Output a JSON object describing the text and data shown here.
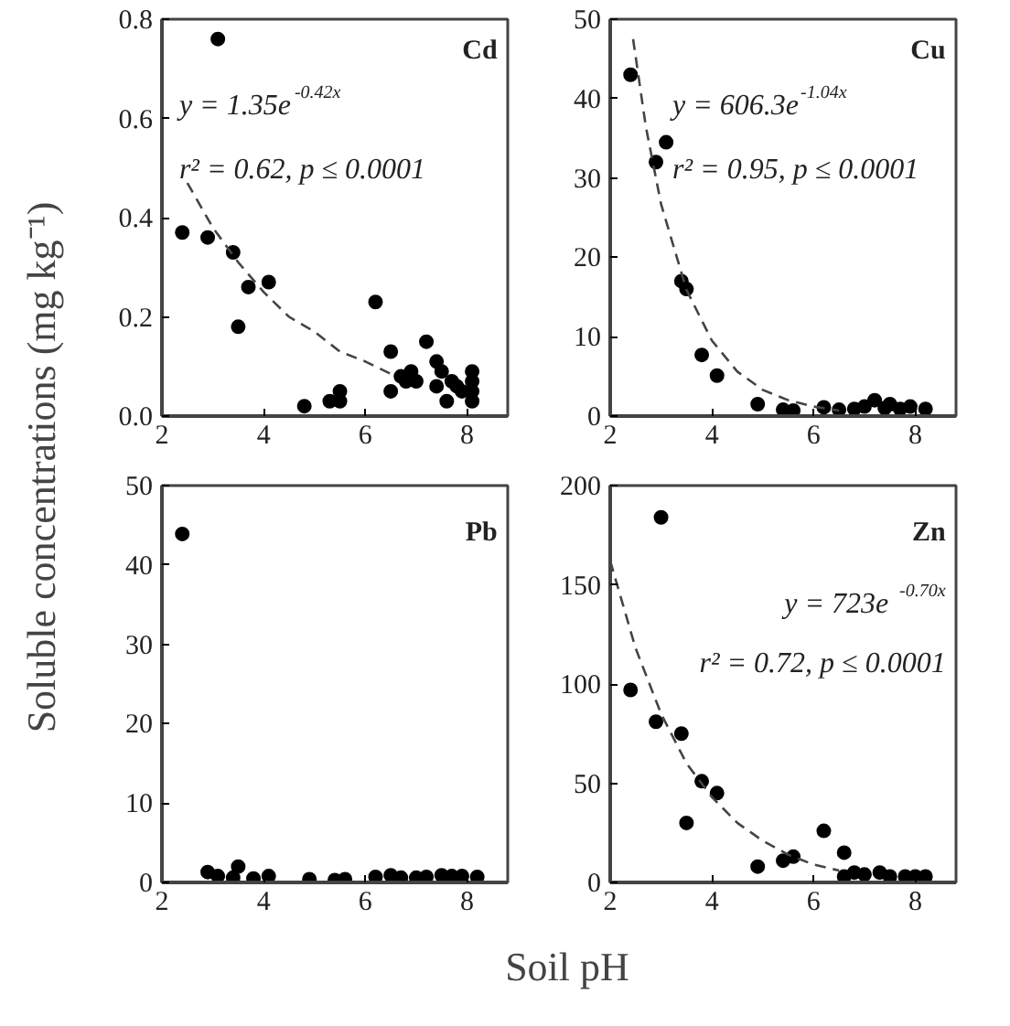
{
  "chart_data": [
    {
      "type": "scatter",
      "ylabel": "Soluble concentrations (mg kg⁻¹)",
      "xlim": [
        2,
        8.8
      ],
      "xticks": [
        2,
        4,
        6,
        8
      ],
      "ylim": [
        0,
        0.8
      ],
      "yticks": [
        {
          "value": 0,
          "label": "0.0"
        },
        0.2,
        0.4,
        0.6,
        0.8
      ],
      "grid": false,
      "annotations": [
        "Cd",
        "y = 1.35e$^{-0.42x}$",
        "r² = 0.62, p ≤ 0.0001"
      ],
      "series": [
        {
          "marker": "circle",
          "color": "#000000",
          "x": [
            2.4,
            2.9,
            3.1,
            3.4,
            3.5,
            3.7,
            4.1,
            4.8,
            5.3,
            5.5,
            5.5,
            6.2,
            6.5,
            6.5,
            6.7,
            6.8,
            6.9,
            7.0,
            7.2,
            7.4,
            7.4,
            7.5,
            7.6,
            7.7,
            7.8,
            7.9,
            8.1,
            8.1,
            8.1,
            8.1
          ],
          "values": [
            0.37,
            0.36,
            0.76,
            0.33,
            0.18,
            0.26,
            0.27,
            0.02,
            0.03,
            0.05,
            0.03,
            0.23,
            0.13,
            0.05,
            0.08,
            0.07,
            0.09,
            0.07,
            0.15,
            0.06,
            0.11,
            0.09,
            0.03,
            0.07,
            0.06,
            0.05,
            0.07,
            0.09,
            0.05,
            0.03
          ]
        },
        {
          "type": "line",
          "marker": "none",
          "line_style": "dashed",
          "color": "#444444",
          "x": [
            2.5,
            3,
            3.5,
            4,
            4.5,
            5,
            5.5,
            6,
            6.6
          ],
          "values": [
            0.47,
            0.38,
            0.31,
            0.25,
            0.2,
            0.17,
            0.13,
            0.11,
            0.08
          ]
        }
      ]
    },
    {
      "type": "scatter",
      "xlim": [
        2,
        8.8
      ],
      "xticks": [
        2,
        4,
        6,
        8
      ],
      "ylim": [
        0,
        50
      ],
      "yticks": [
        0,
        10,
        20,
        30,
        40,
        50
      ],
      "grid": false,
      "annotations": [
        "Cu",
        "y = 606.3e$^{-1.04x}$",
        "r² = 0.95, p ≤ 0.0001"
      ],
      "series": [
        {
          "marker": "circle",
          "color": "#000000",
          "x": [
            2.4,
            2.9,
            3.1,
            3.4,
            3.5,
            3.8,
            4.1,
            4.9,
            5.4,
            5.6,
            6.2,
            6.5,
            6.8,
            7.0,
            7.2,
            7.4,
            7.5,
            7.7,
            7.9,
            8.1,
            8.2
          ],
          "values": [
            43,
            32,
            34.5,
            17,
            16,
            7.7,
            5.1,
            1.5,
            0.8,
            0.7,
            1.1,
            0.8,
            0.9,
            1.2,
            2,
            1,
            1.5,
            0.9,
            1.2,
            null,
            0.9
          ]
        },
        {
          "type": "line",
          "marker": "none",
          "line_style": "dashed",
          "color": "#444444",
          "x": [
            2.45,
            2.7,
            3,
            3.5,
            4,
            4.5,
            5,
            5.5,
            6,
            6.5
          ],
          "values": [
            47.5,
            36.5,
            26.7,
            15.9,
            9.5,
            5.6,
            3.3,
            2,
            1.2,
            0.7
          ]
        }
      ]
    },
    {
      "type": "scatter",
      "xlim": [
        2,
        8.8
      ],
      "xticks": [
        2,
        4,
        6,
        8
      ],
      "ylim": [
        0,
        50
      ],
      "yticks": [
        0,
        10,
        20,
        30,
        40,
        50
      ],
      "grid": false,
      "annotations": [
        "Pb"
      ],
      "series": [
        {
          "marker": "circle",
          "color": "#000000",
          "x": [
            2.4,
            2.9,
            3.1,
            3.4,
            3.5,
            3.8,
            4.1,
            4.9,
            5.4,
            5.6,
            6.2,
            6.5,
            6.7,
            7.0,
            7.2,
            7.5,
            7.7,
            7.9,
            8.2
          ],
          "values": [
            43.9,
            1.3,
            0.8,
            0.6,
            2,
            0.5,
            0.8,
            0.4,
            0.3,
            0.4,
            0.7,
            0.9,
            0.6,
            0.6,
            0.7,
            0.9,
            0.8,
            0.8,
            0.7
          ]
        }
      ]
    },
    {
      "type": "scatter",
      "xlabel": "Soil pH",
      "xlim": [
        2,
        8.8
      ],
      "xticks": [
        2,
        4,
        6,
        8
      ],
      "ylim": [
        0,
        200
      ],
      "yticks": [
        0,
        50,
        100,
        150,
        200
      ],
      "grid": false,
      "annotations": [
        "Zn",
        "y = 723e$^{-0.70x}$",
        "r² = 0.72, p ≤ 0.0001"
      ],
      "series": [
        {
          "marker": "circle",
          "color": "#000000",
          "x": [
            2.4,
            2.9,
            3.0,
            3.4,
            3.5,
            3.8,
            4.1,
            4.9,
            5.4,
            5.6,
            6.2,
            6.6,
            6.6,
            6.8,
            7.0,
            7.3,
            7.5,
            7.8,
            8.0,
            8.2
          ],
          "values": [
            97,
            81,
            184,
            75,
            30,
            51,
            45,
            8,
            11,
            13,
            26,
            15,
            3,
            5,
            4,
            5,
            3,
            3,
            3,
            3
          ]
        },
        {
          "type": "line",
          "marker": "none",
          "line_style": "dashed",
          "color": "#444444",
          "x": [
            2,
            2.5,
            3,
            3.5,
            4,
            4.5,
            5,
            5.5,
            6,
            6.5
          ],
          "values": [
            162,
            118,
            85,
            60,
            43,
            30,
            21,
            14,
            9,
            6
          ]
        }
      ]
    }
  ]
}
